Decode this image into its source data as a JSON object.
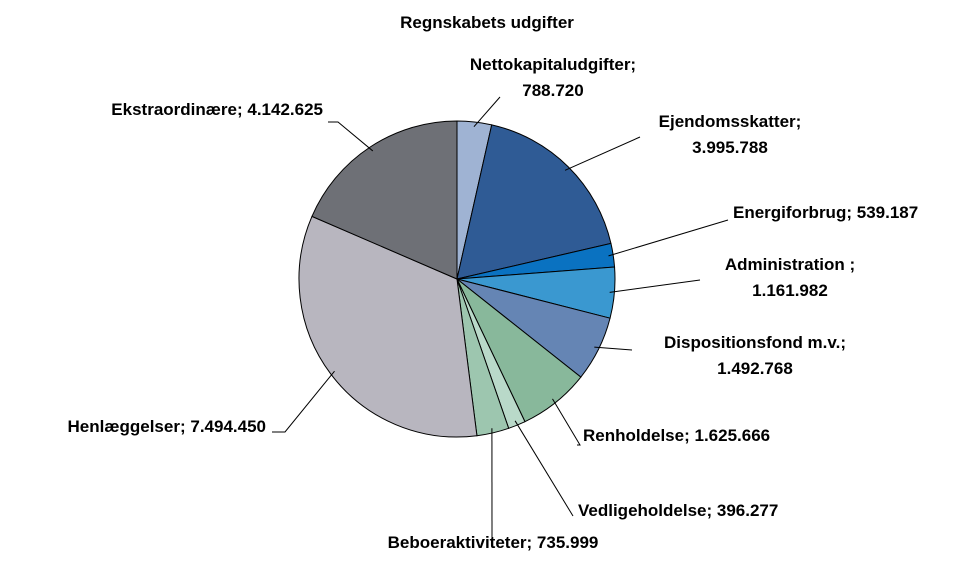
{
  "chart_data": {
    "type": "pie",
    "title": "Regnskabets udgifter",
    "categories": [
      "Nettokapitaludgifter;",
      "Ejendomsskatter;",
      "Energiforbrug;",
      "Administration  ;",
      "Dispositionsfond m.v.;",
      "Renholdelse;",
      "Vedligeholdelse;",
      "Beboeraktiviteter;",
      "Henlæggelser;",
      "Ekstraordinære;"
    ],
    "values": [
      788720,
      3995788,
      539187,
      1161982,
      1492768,
      1625666,
      396277,
      735999,
      7494450,
      4142625
    ],
    "value_labels": [
      "788.720",
      "3.995.788",
      "539.187",
      "1.161.982",
      "1.492.768",
      "1.625.666",
      "396.277",
      "735.999",
      "7.494.450",
      "4.142.625"
    ],
    "colors": [
      "#9fb3d3",
      "#2f5b95",
      "#0a72c1",
      "#3a98d0",
      "#6585b4",
      "#88b89b",
      "#b9d9c9",
      "#9dc6af",
      "#b8b6bf",
      "#6e7076"
    ]
  }
}
